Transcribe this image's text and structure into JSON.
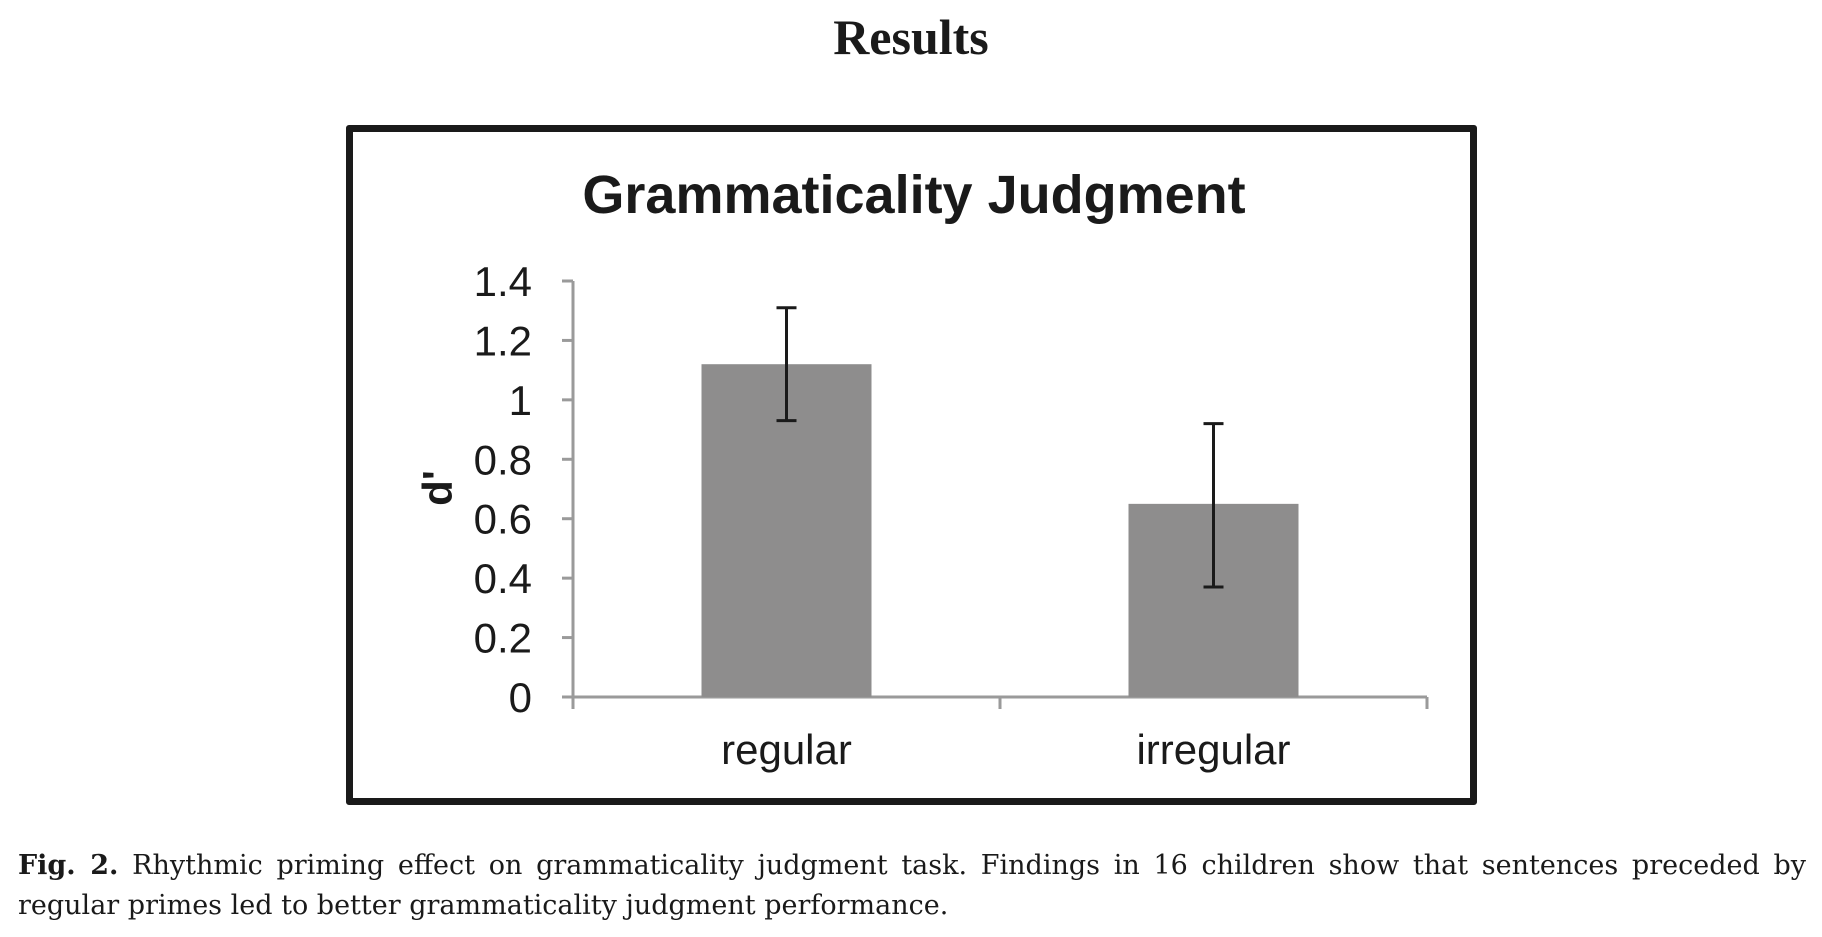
{
  "page": {
    "heading": "Results"
  },
  "chart_data": {
    "type": "bar",
    "title": "Grammaticality Judgment",
    "xlabel": "",
    "ylabel": "d'",
    "categories": [
      "regular",
      "irregular"
    ],
    "values": [
      1.12,
      0.65
    ],
    "error_bars": [
      {
        "lower": 0.93,
        "upper": 1.31
      },
      {
        "lower": 0.37,
        "upper": 0.92
      }
    ],
    "ylim": [
      0,
      1.4
    ],
    "yticks": [
      "0",
      "0.2",
      "0.4",
      "0.6",
      "0.8",
      "1",
      "1.2",
      "1.4"
    ],
    "ytick_values": [
      0,
      0.2,
      0.4,
      0.6,
      0.8,
      1,
      1.2,
      1.4
    ],
    "grid": false,
    "legend": "none",
    "colors": {
      "bar": "#8e8d8d",
      "axis": "#9a9a9a",
      "error_bar": "#1a1a1a",
      "frame": "#1a1a1a"
    }
  },
  "caption": {
    "label": "Fig. 2.",
    "text": "Rhythmic priming effect on grammaticality judgment task. Findings in 16 children show that sentences preceded by regular primes led to better grammaticality judgment performance."
  }
}
